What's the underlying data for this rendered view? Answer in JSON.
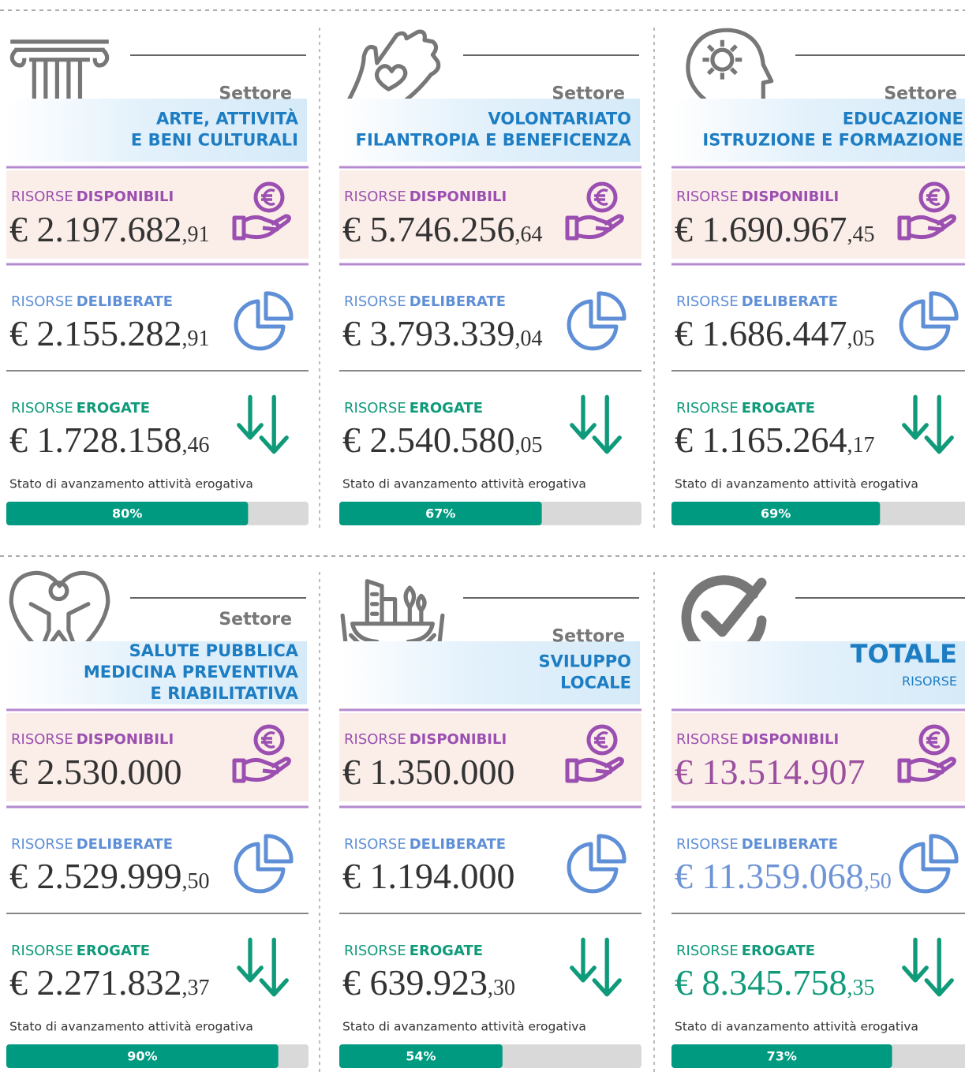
{
  "labels": {
    "prefix": "RISORSE",
    "disponibili": "DISPONIBILI",
    "deliberate": "DELIBERATE",
    "erogate": "EROGATE",
    "progress": "Stato di avanzamento attività erogativa"
  },
  "panels": [
    {
      "sector": "Settore",
      "title": [
        "ARTE, ATTIVITÀ",
        "E BENI CULTURALI"
      ],
      "disponibili": {
        "amount": "€ 2.197.682",
        "cents": ",91"
      },
      "deliberate": {
        "amount": "€ 2.155.282",
        "cents": ",91"
      },
      "erogate": {
        "amount": "€ 1.728.158",
        "cents": ",46"
      },
      "progress": {
        "value": 80,
        "label": "80%"
      }
    },
    {
      "sector": "Settore",
      "title": [
        "VOLONTARIATO",
        "FILANTROPIA E BENEFICENZA"
      ],
      "disponibili": {
        "amount": "€ 5.746.256",
        "cents": ",64"
      },
      "deliberate": {
        "amount": "€ 3.793.339",
        "cents": ",04"
      },
      "erogate": {
        "amount": "€ 2.540.580",
        "cents": ",05"
      },
      "progress": {
        "value": 67,
        "label": "67%"
      }
    },
    {
      "sector": "Settore",
      "title": [
        "EDUCAZIONE",
        "ISTRUZIONE E FORMAZIONE"
      ],
      "disponibili": {
        "amount": "€ 1.690.967",
        "cents": ",45"
      },
      "deliberate": {
        "amount": "€ 1.686.447",
        "cents": ",05"
      },
      "erogate": {
        "amount": "€ 1.165.264",
        "cents": ",17"
      },
      "progress": {
        "value": 69,
        "label": "69%"
      }
    },
    {
      "sector": "Settore",
      "title": [
        "SALUTE PUBBLICA",
        "MEDICINA PREVENTIVA",
        "E RIABILITATIVA"
      ],
      "disponibili": {
        "amount": "€ 2.530.000"
      },
      "deliberate": {
        "amount": "€ 2.529.999",
        "cents": ",50"
      },
      "erogate": {
        "amount": "€ 2.271.832",
        "cents": ",37"
      },
      "progress": {
        "value": 90,
        "label": "90%"
      }
    },
    {
      "sector": "Settore",
      "title": [
        "SVILUPPO",
        "LOCALE"
      ],
      "disponibili": {
        "amount": "€ 1.350.000"
      },
      "deliberate": {
        "amount": "€ 1.194.000"
      },
      "erogate": {
        "amount": "€ 639.923",
        "cents": ",30"
      },
      "progress": {
        "value": 54,
        "label": "54%"
      }
    },
    {
      "title": [
        "TOTALE"
      ],
      "subtitle": "RISORSE",
      "disponibili": {
        "amount": "€ 13.514.907"
      },
      "deliberate": {
        "amount": "€ 11.359.068",
        "cents": ",50"
      },
      "erogate": {
        "amount": "€ 8.345.758",
        "cents": ",35"
      },
      "progress": {
        "value": 73,
        "label": "73%"
      }
    }
  ]
}
